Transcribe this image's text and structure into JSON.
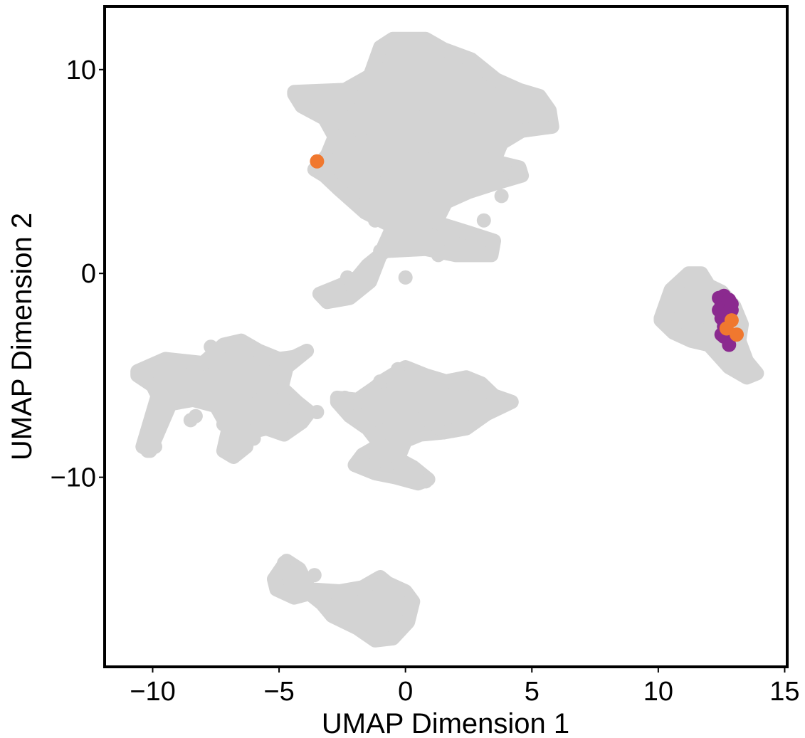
{
  "chart_data": {
    "type": "scatter",
    "title": "",
    "xlabel": "UMAP Dimension 1",
    "ylabel": "UMAP Dimension 2",
    "xlim": [
      -11.9,
      15.1
    ],
    "ylim": [
      -19.3,
      13.1
    ],
    "x_ticks": [
      -10,
      -5,
      0,
      5,
      10,
      15
    ],
    "x_tick_labels": [
      "−10",
      "−5",
      "0",
      "5",
      "10",
      "15"
    ],
    "y_ticks": [
      -10,
      0,
      10
    ],
    "y_tick_labels": [
      "−10",
      "0",
      "10"
    ],
    "grid": false,
    "legend": "none",
    "colors": {
      "background_cells": "#d3d3d3",
      "group_purple": "#8b2a8f",
      "group_orange": "#f0782f"
    },
    "background_regions": [
      {
        "cluster": "top-center",
        "hull": [
          [
            -4.4,
            8.9
          ],
          [
            -2.4,
            9.0
          ],
          [
            -1.4,
            9.7
          ],
          [
            -1.0,
            11.1
          ],
          [
            -0.5,
            11.5
          ],
          [
            0.8,
            11.5
          ],
          [
            1.5,
            11.0
          ],
          [
            2.6,
            10.5
          ],
          [
            3.6,
            9.5
          ],
          [
            4.5,
            9.0
          ],
          [
            5.3,
            8.7
          ],
          [
            5.7,
            8.0
          ],
          [
            5.8,
            7.2
          ],
          [
            4.6,
            7.0
          ],
          [
            3.8,
            6.4
          ],
          [
            3.5,
            5.5
          ],
          [
            4.5,
            5.2
          ],
          [
            4.6,
            4.8
          ],
          [
            3.5,
            4.4
          ],
          [
            2.5,
            4.0
          ],
          [
            1.6,
            3.5
          ],
          [
            1.2,
            2.5
          ],
          [
            2.5,
            2.0
          ],
          [
            3.5,
            1.6
          ],
          [
            3.4,
            0.9
          ],
          [
            2.0,
            0.9
          ],
          [
            0.8,
            1.2
          ],
          [
            -0.8,
            1.1
          ],
          [
            -1.5,
            0.4
          ],
          [
            -1.9,
            -0.2
          ],
          [
            -2.6,
            -0.6
          ],
          [
            -3.4,
            -1.0
          ],
          [
            -3.1,
            -1.4
          ],
          [
            -2.2,
            -1.2
          ],
          [
            -1.4,
            -0.4
          ],
          [
            -0.9,
            1.2
          ],
          [
            -0.5,
            2.3
          ],
          [
            -1.6,
            3.0
          ],
          [
            -2.6,
            4.1
          ],
          [
            -3.2,
            4.8
          ],
          [
            -3.6,
            5.1
          ],
          [
            -3.1,
            5.8
          ],
          [
            -2.8,
            6.7
          ],
          [
            -3.2,
            7.6
          ],
          [
            -4.1,
            8.2
          ],
          [
            -4.4,
            8.8
          ]
        ]
      },
      {
        "cluster": "right",
        "hull": [
          [
            10.1,
            -2.2
          ],
          [
            10.5,
            -0.8
          ],
          [
            11.2,
            0.0
          ],
          [
            11.7,
            0.0
          ],
          [
            12.0,
            -0.6
          ],
          [
            12.5,
            -0.9
          ],
          [
            13.0,
            -1.6
          ],
          [
            13.3,
            -2.5
          ],
          [
            13.2,
            -3.3
          ],
          [
            13.5,
            -4.3
          ],
          [
            13.9,
            -4.9
          ],
          [
            13.5,
            -5.1
          ],
          [
            12.8,
            -4.6
          ],
          [
            12.0,
            -3.5
          ],
          [
            11.3,
            -3.3
          ],
          [
            10.6,
            -2.9
          ],
          [
            10.1,
            -2.3
          ]
        ]
      },
      {
        "cluster": "left",
        "hull": [
          [
            -10.6,
            -4.8
          ],
          [
            -9.5,
            -4.2
          ],
          [
            -8.0,
            -4.4
          ],
          [
            -7.2,
            -3.5
          ],
          [
            -6.5,
            -3.3
          ],
          [
            -5.8,
            -3.8
          ],
          [
            -5.0,
            -4.2
          ],
          [
            -4.4,
            -4.1
          ],
          [
            -3.9,
            -3.8
          ],
          [
            -4.7,
            -4.6
          ],
          [
            -4.9,
            -5.6
          ],
          [
            -4.3,
            -6.3
          ],
          [
            -3.8,
            -6.8
          ],
          [
            -4.1,
            -7.3
          ],
          [
            -4.8,
            -7.9
          ],
          [
            -5.5,
            -7.6
          ],
          [
            -6.2,
            -7.8
          ],
          [
            -6.3,
            -8.5
          ],
          [
            -6.8,
            -9.0
          ],
          [
            -7.2,
            -8.7
          ],
          [
            -7.0,
            -7.6
          ],
          [
            -7.5,
            -6.5
          ],
          [
            -8.4,
            -6.2
          ],
          [
            -9.3,
            -6.4
          ],
          [
            -10.1,
            -8.7
          ],
          [
            -10.4,
            -8.5
          ],
          [
            -9.8,
            -6.0
          ],
          [
            -10.0,
            -5.5
          ],
          [
            -10.6,
            -5.0
          ]
        ]
      },
      {
        "cluster": "middle",
        "hull": [
          [
            -2.7,
            -6.1
          ],
          [
            -1.9,
            -6.2
          ],
          [
            -1.2,
            -5.6
          ],
          [
            -0.8,
            -5.2
          ],
          [
            0.0,
            -4.6
          ],
          [
            0.8,
            -5.0
          ],
          [
            1.6,
            -5.3
          ],
          [
            2.4,
            -5.1
          ],
          [
            3.0,
            -5.4
          ],
          [
            3.5,
            -6.0
          ],
          [
            4.2,
            -6.3
          ],
          [
            3.2,
            -6.9
          ],
          [
            2.4,
            -7.6
          ],
          [
            1.5,
            -7.8
          ],
          [
            0.6,
            -7.9
          ],
          [
            0.0,
            -8.2
          ],
          [
            -0.3,
            -9.1
          ],
          [
            0.3,
            -9.5
          ],
          [
            0.9,
            -10.1
          ],
          [
            0.5,
            -10.3
          ],
          [
            -0.4,
            -10.0
          ],
          [
            -1.2,
            -9.8
          ],
          [
            -2.0,
            -9.4
          ],
          [
            -1.7,
            -8.9
          ],
          [
            -1.0,
            -8.4
          ],
          [
            -1.5,
            -7.6
          ],
          [
            -2.2,
            -7.0
          ],
          [
            -2.7,
            -6.3
          ]
        ]
      },
      {
        "cluster": "bottom",
        "hull": [
          [
            -5.2,
            -15.0
          ],
          [
            -4.7,
            -14.1
          ],
          [
            -4.2,
            -14.5
          ],
          [
            -3.8,
            -15.5
          ],
          [
            -2.6,
            -15.6
          ],
          [
            -1.7,
            -15.4
          ],
          [
            -1.0,
            -14.9
          ],
          [
            -0.7,
            -15.2
          ],
          [
            0.0,
            -15.6
          ],
          [
            0.3,
            -16.1
          ],
          [
            0.1,
            -17.1
          ],
          [
            -0.5,
            -17.9
          ],
          [
            -1.2,
            -18.0
          ],
          [
            -1.9,
            -17.4
          ],
          [
            -2.9,
            -16.8
          ],
          [
            -3.3,
            -16.2
          ],
          [
            -3.8,
            -15.7
          ],
          [
            -4.4,
            -15.9
          ],
          [
            -5.1,
            -15.5
          ]
        ]
      }
    ],
    "series": [
      {
        "color": "#d3d3d3",
        "points": [
          [
            -3.8,
            8.9
          ],
          [
            -0.7,
            9.2
          ],
          [
            1.9,
            9.0
          ],
          [
            4.3,
            8.5
          ],
          [
            5.4,
            7.6
          ],
          [
            -2.0,
            8.0
          ],
          [
            0.3,
            8.1
          ],
          [
            2.8,
            7.5
          ],
          [
            -2.6,
            6.0
          ],
          [
            -0.5,
            6.3
          ],
          [
            1.0,
            5.6
          ],
          [
            2.7,
            5.2
          ],
          [
            4.2,
            4.9
          ],
          [
            -3.0,
            5.1
          ],
          [
            -0.9,
            4.4
          ],
          [
            0.5,
            3.0
          ],
          [
            3.1,
            2.6
          ],
          [
            2.8,
            1.3
          ],
          [
            -1.2,
            2.6
          ],
          [
            -0.6,
            1.4
          ],
          [
            1.3,
            0.9
          ],
          [
            -2.3,
            -0.2
          ],
          [
            -3.2,
            -1.1
          ],
          [
            -1.5,
            -0.2
          ],
          [
            -1.0,
            1.1
          ],
          [
            1.2,
            2.5
          ],
          [
            0.0,
            -0.2
          ],
          [
            -1.8,
            7.0
          ],
          [
            -1.2,
            5.5
          ],
          [
            3.8,
            3.8
          ],
          [
            11.3,
            -0.5
          ],
          [
            10.6,
            -1.6
          ],
          [
            11.8,
            -2.8
          ],
          [
            12.2,
            -3.0
          ],
          [
            13.4,
            -4.4
          ],
          [
            13.8,
            -4.8
          ],
          [
            10.2,
            -2.1
          ],
          [
            -10.3,
            -4.9
          ],
          [
            -9.5,
            -4.6
          ],
          [
            -8.3,
            -4.7
          ],
          [
            -7.7,
            -3.6
          ],
          [
            -6.8,
            -3.4
          ],
          [
            -5.5,
            -4.2
          ],
          [
            -4.2,
            -4.0
          ],
          [
            -7.0,
            -5.6
          ],
          [
            -5.8,
            -6.2
          ],
          [
            -5.0,
            -7.0
          ],
          [
            -4.4,
            -7.4
          ],
          [
            -3.5,
            -6.8
          ],
          [
            -6.0,
            -8.1
          ],
          [
            -6.7,
            -8.8
          ],
          [
            -8.8,
            -6.0
          ],
          [
            -8.5,
            -7.2
          ],
          [
            -9.9,
            -8.5
          ],
          [
            -10.2,
            -8.7
          ],
          [
            -7.2,
            -7.4
          ],
          [
            -8.3,
            -7.0
          ],
          [
            -2.4,
            -6.1
          ],
          [
            -1.0,
            -5.3
          ],
          [
            -0.3,
            -4.7
          ],
          [
            1.6,
            -5.3
          ],
          [
            2.6,
            -5.4
          ],
          [
            3.7,
            -6.1
          ],
          [
            4.0,
            -6.3
          ],
          [
            0.6,
            -6.5
          ],
          [
            -1.7,
            -6.3
          ],
          [
            -0.8,
            -7.7
          ],
          [
            1.3,
            -7.6
          ],
          [
            2.6,
            -7.3
          ],
          [
            -1.2,
            -8.8
          ],
          [
            -1.3,
            -9.5
          ],
          [
            -0.1,
            -9.8
          ],
          [
            0.8,
            -10.2
          ],
          [
            -2.0,
            -9.4
          ],
          [
            -0.2,
            -5.3
          ],
          [
            0.4,
            -6.1
          ],
          [
            -4.4,
            -15.0
          ],
          [
            -4.8,
            -14.2
          ],
          [
            -3.7,
            -15.6
          ],
          [
            -2.4,
            -16.0
          ],
          [
            -1.3,
            -15.2
          ],
          [
            -0.3,
            -15.8
          ],
          [
            -0.9,
            -17.8
          ],
          [
            -1.7,
            -17.2
          ],
          [
            -2.6,
            -16.6
          ],
          [
            -3.6,
            -14.8
          ],
          [
            0.1,
            -16.3
          ]
        ]
      },
      {
        "color": "#8b2a8f",
        "points": [
          [
            12.4,
            -1.2
          ],
          [
            12.6,
            -1.1
          ],
          [
            12.8,
            -1.3
          ],
          [
            12.5,
            -1.5
          ],
          [
            12.7,
            -1.6
          ],
          [
            12.9,
            -1.8
          ],
          [
            12.6,
            -1.9
          ],
          [
            12.8,
            -2.1
          ],
          [
            12.5,
            -2.2
          ],
          [
            12.7,
            -2.4
          ],
          [
            12.6,
            -2.6
          ],
          [
            12.4,
            -1.8
          ],
          [
            12.9,
            -1.5
          ],
          [
            12.6,
            -3.1
          ],
          [
            12.8,
            -3.5
          ],
          [
            12.5,
            -3.0
          ],
          [
            12.7,
            -2.0
          ]
        ]
      },
      {
        "color": "#f0782f",
        "points": [
          [
            -3.5,
            5.5
          ],
          [
            12.9,
            -2.3
          ],
          [
            12.7,
            -2.7
          ],
          [
            13.1,
            -3.0
          ]
        ]
      }
    ]
  }
}
